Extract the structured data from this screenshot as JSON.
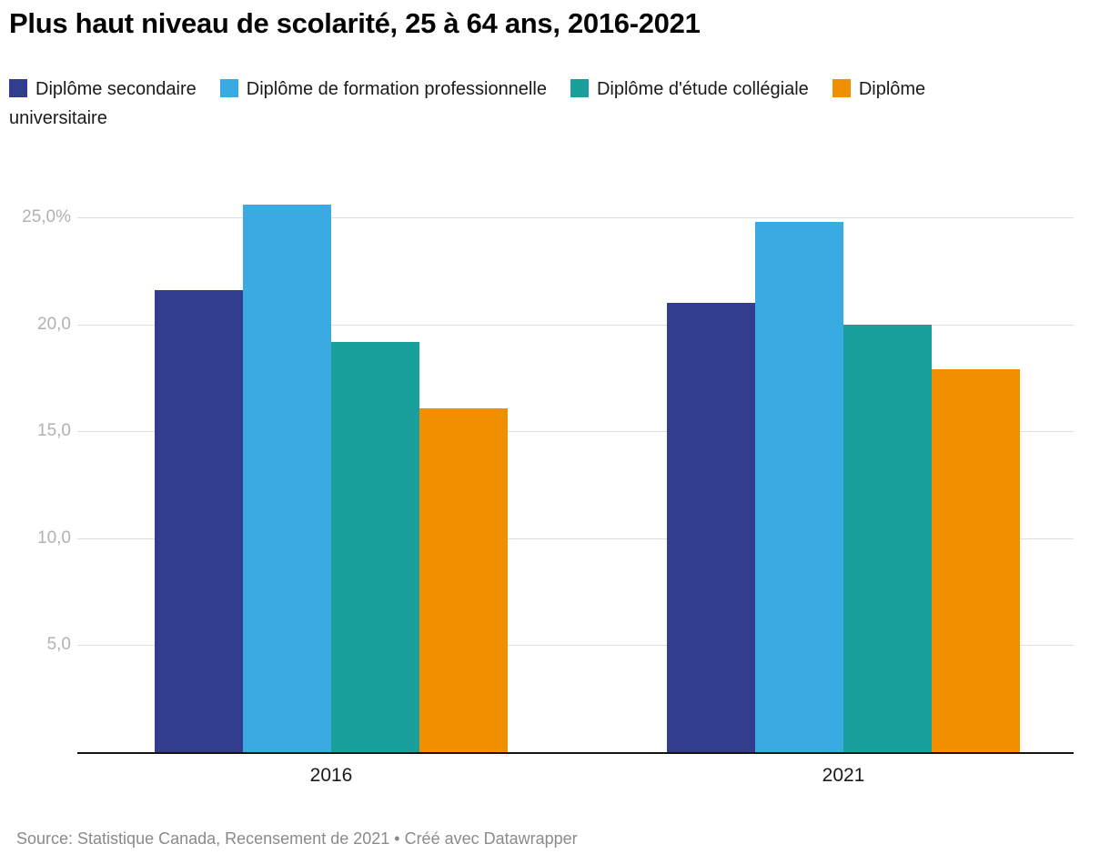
{
  "header": {
    "title": "Plus haut niveau de scolarité, 25 à 64 ans, 2016-2021"
  },
  "legend": {
    "items": [
      {
        "label": "Diplôme secondaire",
        "color": "#323d8e"
      },
      {
        "label": "Diplôme de formation professionnelle",
        "color": "#3aabe2"
      },
      {
        "label": "Diplôme d'étude collégiale",
        "color": "#1aa09c"
      },
      {
        "label": "Diplôme universitaire",
        "color": "#f08f00"
      }
    ]
  },
  "chart_data": {
    "type": "bar",
    "title": "Plus haut niveau de scolarité, 25 à 64 ans, 2016-2021",
    "categories": [
      "2016",
      "2021"
    ],
    "series": [
      {
        "name": "Diplôme secondaire",
        "color": "#323d8e",
        "values": [
          21.6,
          21.0
        ]
      },
      {
        "name": "Diplôme de formation professionnelle",
        "color": "#3aabe2",
        "values": [
          25.6,
          24.8
        ]
      },
      {
        "name": "Diplôme d'étude collégiale",
        "color": "#1aa09c",
        "values": [
          19.2,
          20.0
        ]
      },
      {
        "name": "Diplôme universitaire",
        "color": "#f08f00",
        "values": [
          16.1,
          17.9
        ]
      }
    ],
    "xlabel": "",
    "ylabel": "",
    "ylim": [
      0,
      26.8
    ],
    "grid": true,
    "legend_position": "top",
    "yticks": [
      {
        "value": 25,
        "label": "25,0%"
      },
      {
        "value": 20,
        "label": "20,0"
      },
      {
        "value": 15,
        "label": "15,0"
      },
      {
        "value": 10,
        "label": "10,0"
      },
      {
        "value": 5,
        "label": "5,0"
      }
    ]
  },
  "footer": {
    "text": "Source: Statistique Canada, Recensement de 2021 • Créé avec Datawrapper"
  }
}
